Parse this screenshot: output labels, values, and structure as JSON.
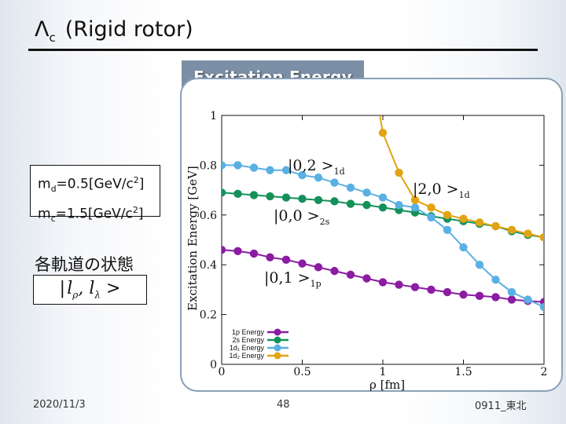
{
  "slide": {
    "title_main": "Λ",
    "title_sub": "c",
    "title_rest": "(Rigid rotor)",
    "section_label": "Excitation Energy",
    "mass_lines": [
      {
        "name": "m",
        "sub": "d",
        "value": "=0.5[GeV/c",
        "sup": "2",
        "tail": "]"
      },
      {
        "name": "m",
        "sub": "c",
        "value": "=1.5[GeV/c",
        "sup": "2",
        "tail": "]"
      }
    ],
    "orbit_label": "各軌道の状態",
    "orbit_formula": "|l",
    "orbit_formula_full": "| lρ, lλ >",
    "date": "2020/11/3",
    "page": "48",
    "footer": "0911_東北"
  },
  "chart_data": {
    "type": "line",
    "xlabel": "ρ [fm]",
    "ylabel": "Excitation Energy [GeV]",
    "xlim": [
      0,
      2
    ],
    "ylim": [
      0,
      1
    ],
    "xticks": [
      "0",
      "0.5",
      "1",
      "1.5",
      "2"
    ],
    "yticks": [
      "0",
      "0.2",
      "0.4",
      "0.6",
      "0.8",
      "1"
    ],
    "legend_position": "bottom-left",
    "x": [
      0.0,
      0.1,
      0.2,
      0.3,
      0.4,
      0.5,
      0.6,
      0.7,
      0.8,
      0.9,
      1.0,
      1.1,
      1.2,
      1.3,
      1.4,
      1.5,
      1.6,
      1.7,
      1.8,
      1.9,
      2.0
    ],
    "series": [
      {
        "name": "1p Energy",
        "color": "#8b1ca3",
        "values": [
          0.46,
          0.455,
          0.445,
          0.43,
          0.42,
          0.405,
          0.39,
          0.375,
          0.36,
          0.345,
          0.33,
          0.32,
          0.31,
          0.3,
          0.29,
          0.28,
          0.275,
          0.27,
          0.26,
          0.255,
          0.25
        ]
      },
      {
        "name": "2s Energy",
        "color": "#14915a",
        "values": [
          0.69,
          0.685,
          0.68,
          0.675,
          0.67,
          0.665,
          0.66,
          0.655,
          0.645,
          0.64,
          0.63,
          0.62,
          0.61,
          0.595,
          0.585,
          0.575,
          0.565,
          0.555,
          0.535,
          0.52,
          0.51
        ]
      },
      {
        "name": "1d₁ Energy",
        "color": "#5ab0e3",
        "values": [
          0.8,
          0.8,
          0.79,
          0.78,
          0.78,
          0.76,
          0.75,
          0.73,
          0.71,
          0.69,
          0.67,
          0.64,
          0.63,
          0.59,
          0.54,
          0.47,
          0.4,
          0.34,
          0.29,
          0.26,
          0.23
        ]
      },
      {
        "name": "1d₂ Energy",
        "color": "#e2a314",
        "values": [
          null,
          null,
          null,
          null,
          null,
          null,
          null,
          null,
          null,
          null,
          0.93,
          0.77,
          0.66,
          0.63,
          0.6,
          0.585,
          0.57,
          0.555,
          0.54,
          0.525,
          0.51
        ]
      }
    ],
    "state_labels": [
      {
        "text": "|0,2 >",
        "sub": "1d"
      },
      {
        "text": "|2,0 >",
        "sub": "1d"
      },
      {
        "text": "|0,0 >",
        "sub": "2s"
      },
      {
        "text": "|0,1 >",
        "sub": "1p"
      }
    ]
  }
}
